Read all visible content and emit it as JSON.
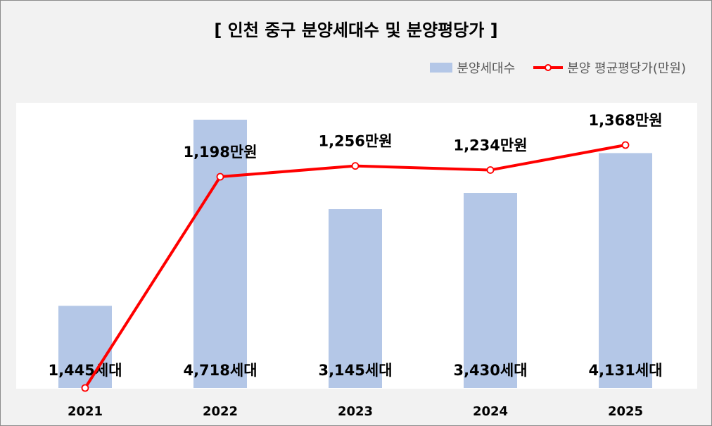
{
  "chart_data": {
    "type": "bar",
    "title": "[ 인천 중구 분양세대수 및 분양평당가 ]",
    "categories": [
      "2021",
      "2022",
      "2023",
      "2024",
      "2025"
    ],
    "series": [
      {
        "name": "분양세대수",
        "type": "bar",
        "values": [
          1445,
          4718,
          3145,
          3430,
          4131
        ],
        "labels": [
          "1,445세대",
          "4,718세대",
          "3,145세대",
          "3,430세대",
          "4,131세대"
        ],
        "color": "#b4c7e7"
      },
      {
        "name": "분양 평균평당가(만원)",
        "type": "line",
        "values": [
          null,
          1198,
          1256,
          1234,
          1368
        ],
        "labels": [
          "",
          "1,198만원",
          "1,256만원",
          "1,234만원",
          "1,368만원"
        ],
        "color": "#ff0000"
      }
    ],
    "legend_position": "top-right",
    "grid": false
  }
}
